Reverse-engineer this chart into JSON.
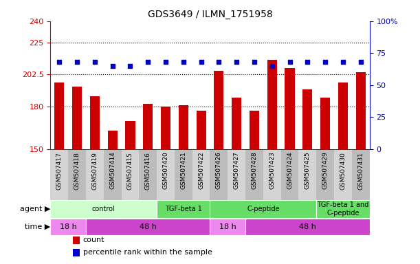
{
  "title": "GDS3649 / ILMN_1751958",
  "samples": [
    "GSM507417",
    "GSM507418",
    "GSM507419",
    "GSM507414",
    "GSM507415",
    "GSM507416",
    "GSM507420",
    "GSM507421",
    "GSM507422",
    "GSM507426",
    "GSM507427",
    "GSM507428",
    "GSM507423",
    "GSM507424",
    "GSM507425",
    "GSM507429",
    "GSM507430",
    "GSM507431"
  ],
  "counts": [
    197,
    194,
    187,
    163,
    170,
    182,
    180,
    181,
    177,
    205,
    186,
    177,
    213,
    207,
    192,
    186,
    197,
    204
  ],
  "percentile_ranks": [
    68,
    68,
    68,
    65,
    65,
    68,
    68,
    68,
    68,
    68,
    68,
    68,
    65,
    68,
    68,
    68,
    68,
    68
  ],
  "bar_color": "#CC0000",
  "dot_color": "#0000CC",
  "ylim_left": [
    150,
    240
  ],
  "ylim_right": [
    0,
    100
  ],
  "yticks_left": [
    150,
    180,
    202.5,
    225,
    240
  ],
  "ytick_labels_left": [
    "150",
    "180",
    "202.5",
    "225",
    "240"
  ],
  "yticks_right": [
    0,
    25,
    50,
    75,
    100
  ],
  "ytick_labels_right": [
    "0",
    "25",
    "50",
    "75",
    "100%"
  ],
  "hlines": [
    180,
    202.5,
    225
  ],
  "agent_groups": [
    {
      "label": "control",
      "start": 0,
      "end": 6,
      "color": "#ccffcc"
    },
    {
      "label": "TGF-beta 1",
      "start": 6,
      "end": 9,
      "color": "#66dd66"
    },
    {
      "label": "C-peptide",
      "start": 9,
      "end": 15,
      "color": "#66dd66"
    },
    {
      "label": "TGF-beta 1 and\nC-peptide",
      "start": 15,
      "end": 18,
      "color": "#66dd66"
    }
  ],
  "time_groups": [
    {
      "label": "18 h",
      "start": 0,
      "end": 2,
      "color": "#ee88ee"
    },
    {
      "label": "48 h",
      "start": 2,
      "end": 9,
      "color": "#cc44cc"
    },
    {
      "label": "18 h",
      "start": 9,
      "end": 11,
      "color": "#ee88ee"
    },
    {
      "label": "48 h",
      "start": 11,
      "end": 18,
      "color": "#cc44cc"
    }
  ],
  "legend_items": [
    {
      "label": "count",
      "color": "#CC0000"
    },
    {
      "label": "percentile rank within the sample",
      "color": "#0000CC"
    }
  ],
  "tick_bg_even": "#d4d4d4",
  "tick_bg_odd": "#bcbcbc",
  "bg_color": "#ffffff"
}
